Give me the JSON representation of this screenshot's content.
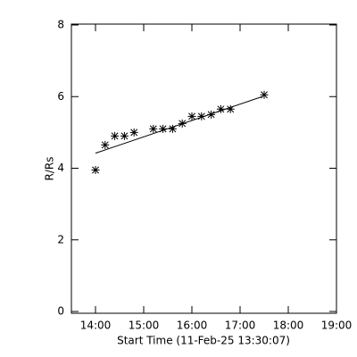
{
  "chart_data": {
    "type": "scatter",
    "xlabel": "Start Time (11-Feb-25 13:30:07)",
    "ylabel": "R/Rs",
    "xlim": [
      13.5,
      19.0
    ],
    "xticks": [
      {
        "value": 14,
        "label": "14:00"
      },
      {
        "value": 15,
        "label": "15:00"
      },
      {
        "value": 16,
        "label": "16:00"
      },
      {
        "value": 17,
        "label": "17:00"
      },
      {
        "value": 18,
        "label": "18:00"
      },
      {
        "value": 19,
        "label": "19:00"
      }
    ],
    "ylim": [
      0,
      8
    ],
    "yticks": [
      0,
      2,
      4,
      6,
      8
    ],
    "series": [
      {
        "style": "asterisk",
        "color": "#000000",
        "x": [
          14.0,
          14.2,
          14.4,
          14.6,
          14.8,
          15.2,
          15.4,
          15.6,
          15.8,
          16.0,
          16.2,
          16.4,
          16.6,
          16.8,
          17.5
        ],
        "values": [
          3.95,
          4.65,
          4.9,
          4.9,
          5.0,
          5.1,
          5.1,
          5.1,
          5.25,
          5.45,
          5.45,
          5.5,
          5.65,
          5.65,
          6.05
        ]
      },
      {
        "style": "line",
        "color": "#000000",
        "x": [
          14.0,
          17.46
        ],
        "values": [
          4.42,
          6.0
        ]
      }
    ]
  }
}
